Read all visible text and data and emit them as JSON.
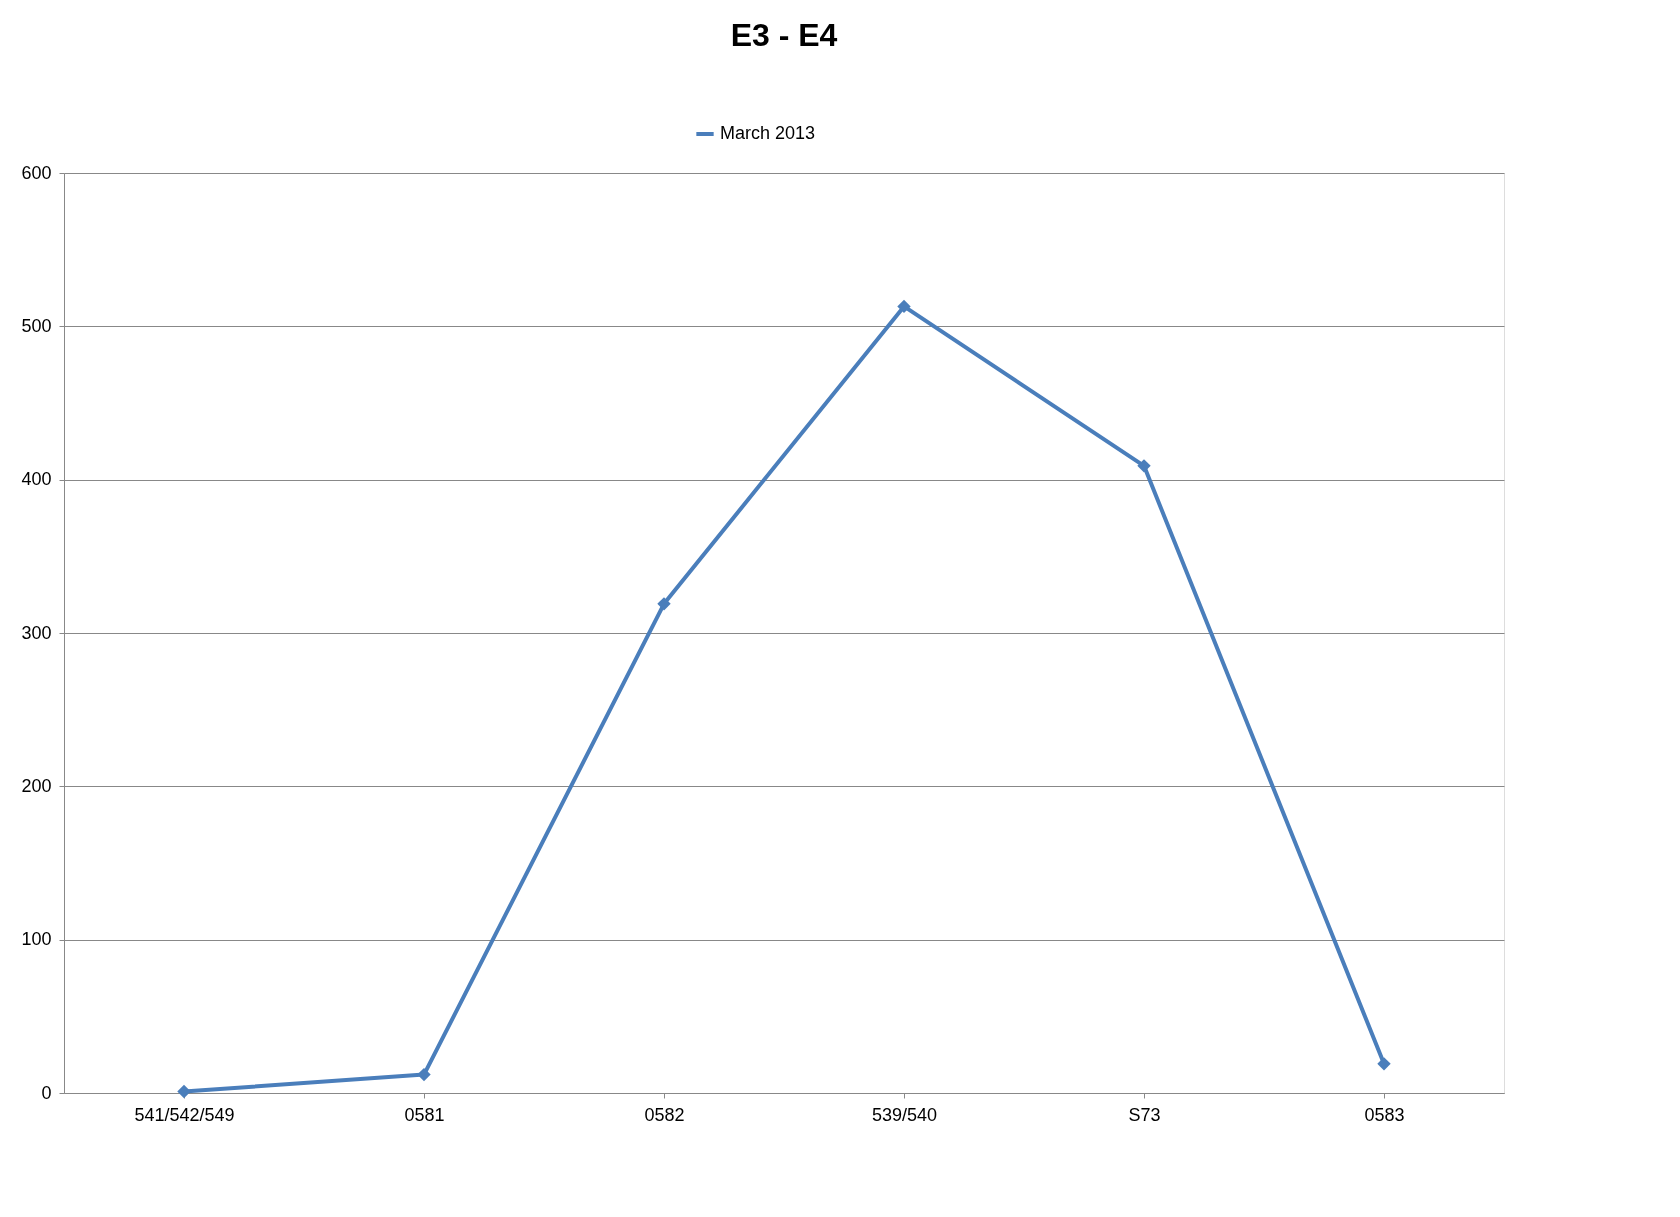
{
  "chart_data": {
    "type": "line",
    "title": "E3 - E4",
    "categories": [
      "541/542/549",
      "0581",
      "0582",
      "539/540",
      "S73",
      "0583"
    ],
    "series": [
      {
        "name": "March 2013",
        "color": "#4a7ebb",
        "values": [
          1,
          12,
          319,
          513,
          409,
          19
        ]
      }
    ],
    "ylim": [
      0,
      600
    ],
    "yticks": [
      0,
      100,
      200,
      300,
      400,
      500,
      600
    ],
    "grid": "y",
    "legend": "top",
    "marker": "diamond",
    "line_style": "solid"
  }
}
